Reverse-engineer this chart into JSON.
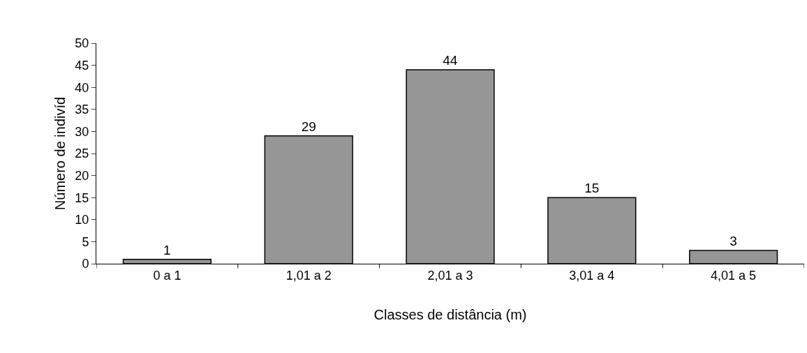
{
  "chart_data": {
    "type": "bar",
    "xlabel": "Classes de distância (m)",
    "ylabel": "Número de indivíd",
    "categories": [
      "0 a 1",
      "1,01 a 2",
      "2,01 a 3",
      "3,01 a 4",
      "4,01 a 5"
    ],
    "values": [
      1,
      29,
      44,
      15,
      3
    ],
    "color": "#969696",
    "ylim": [
      0,
      50
    ],
    "yticks": [
      0,
      5,
      10,
      15,
      20,
      25,
      30,
      35,
      40,
      45,
      50
    ],
    "legend": false,
    "data_labels": true
  }
}
